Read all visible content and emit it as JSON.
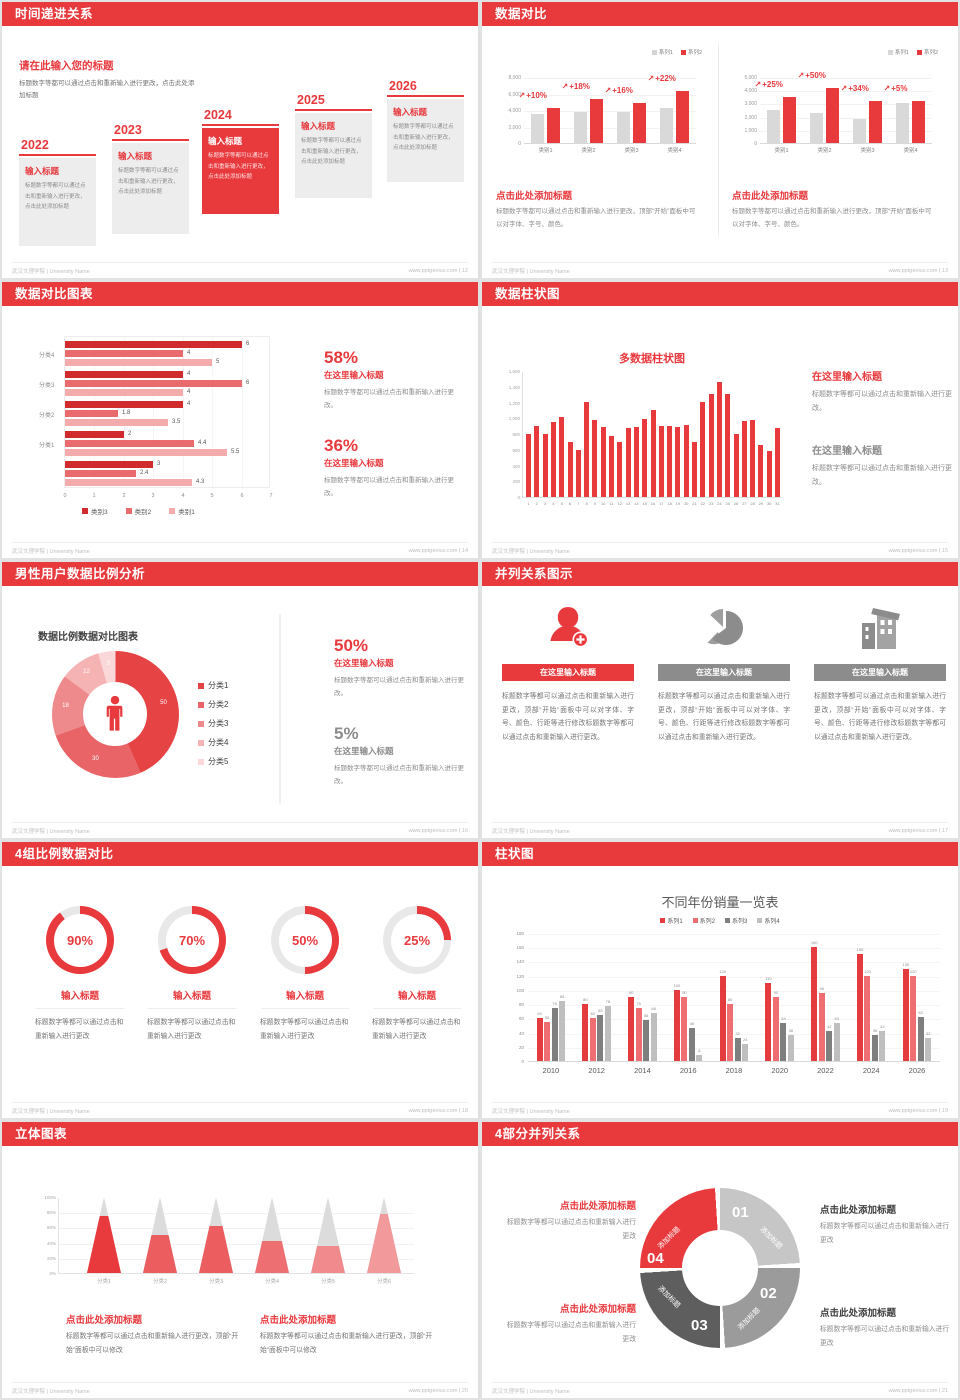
{
  "meta": {
    "accent": "#e8393d",
    "footer_left": "武汉文理学院 | University Name",
    "site": "www.pptgenius.com"
  },
  "slides": {
    "s12": {
      "title": "时间递进关系",
      "page": "12",
      "intro_title": "请在此输入您的标题",
      "intro_body": "标题数字等都可以通过点击和重新输入进行更改，点击此处添加标题",
      "items": [
        {
          "year": "2022",
          "label": "输入标题",
          "body": "标题数字等都可以通过点击和重新输入进行更改，点击此处添加标题",
          "highlight": false
        },
        {
          "year": "2023",
          "label": "输入标题",
          "body": "标题数字等都可以通过点击和重新输入进行更改，点击此处添加标题",
          "highlight": false
        },
        {
          "year": "2024",
          "label": "输入标题",
          "body": "标题数字等都可以通过点击和重新输入进行更改，点击此处添加标题",
          "highlight": true
        },
        {
          "year": "2025",
          "label": "输入标题",
          "body": "标题数字等都可以通过点击和重新输入进行更改，点击此处添加标题",
          "highlight": false
        },
        {
          "year": "2026",
          "label": "输入标题",
          "body": "标题数字等都可以通过点击和重新输入进行更改，点击此处添加标题",
          "highlight": false
        }
      ]
    },
    "s13": {
      "title": "数据对比",
      "page": "13",
      "charts": [
        {
          "type": "bar",
          "legend": [
            "系列1",
            "系列2"
          ],
          "yticks": [
            "8,000",
            "6,000",
            "4,000",
            "2,000",
            "0"
          ],
          "ymax": 8000,
          "categories": [
            "类别1",
            "类别2",
            "类别3",
            "类别4"
          ],
          "series1": [
            3500,
            3800,
            3700,
            4300
          ],
          "series2": [
            4200,
            5300,
            4800,
            6300
          ],
          "annotations": [
            "+10%",
            "+18%",
            "+16%",
            "+22%"
          ],
          "caption_title": "点击此处添加标题",
          "caption_body": "标题数字等都可以通过点击和重新输入进行更改，顶部“开始”面板中可以对字体、字号、颜色。"
        },
        {
          "type": "bar",
          "legend": [
            "系列1",
            "系列2"
          ],
          "yticks": [
            "5,000",
            "4,000",
            "3,000",
            "2,000",
            "1,000",
            "0"
          ],
          "ymax": 5000,
          "categories": [
            "类别1",
            "类别2",
            "类别3",
            "类别4"
          ],
          "series1": [
            2500,
            2300,
            1800,
            3000
          ],
          "series2": [
            3500,
            4200,
            3200,
            3200
          ],
          "annotations": [
            "+25%",
            "+50%",
            "+34%",
            "+5%"
          ],
          "caption_title": "点击此处添加标题",
          "caption_body": "标题数字等都可以通过点击和重新输入进行更改，顶部“开始”面板中可以对字体、字号、颜色。"
        }
      ]
    },
    "s14": {
      "title": "数据对比图表",
      "page": "14",
      "chart": {
        "type": "bar-horizontal",
        "colors": [
          "#d02c2e",
          "#ea6b6e",
          "#f3abac"
        ],
        "legend": [
          "类别3",
          "类别2",
          "类别1"
        ],
        "xticks": [
          "0",
          "1",
          "2",
          "3",
          "4",
          "5",
          "6",
          "7"
        ],
        "xmax": 7,
        "groups": [
          {
            "label": "分类4",
            "values": [
              6,
              4,
              5
            ]
          },
          {
            "label": "分类3",
            "values": [
              4,
              6,
              4
            ]
          },
          {
            "label": "分类2",
            "values": [
              4,
              1.8,
              3.5
            ]
          },
          {
            "label": "分类1",
            "values": [
              2,
              4.4,
              5.5
            ]
          },
          {
            "label": "",
            "values": [
              3,
              2.4,
              4.3
            ]
          }
        ]
      },
      "stats": [
        {
          "pct": "58%",
          "sub": "在这里输入标题",
          "body": "标题数字等都可以通过点击和重新输入进行更改。",
          "red": true
        },
        {
          "pct": "36%",
          "sub": "在这里输入标题",
          "body": "标题数字等都可以通过点击和重新输入进行更改。",
          "red": true
        }
      ]
    },
    "s15": {
      "title": "数据柱状图",
      "page": "15",
      "chart": {
        "type": "bar",
        "title": "多数据柱状图",
        "yticks": [
          "1,600",
          "1,400",
          "1,200",
          "1,000",
          "800",
          "600",
          "400",
          "200",
          "0"
        ],
        "ymax": 1600,
        "values": [
          800,
          900,
          800,
          950,
          1010,
          700,
          600,
          1200,
          980,
          890,
          780,
          700,
          880,
          890,
          990,
          1100,
          900,
          900,
          890,
          910,
          700,
          1200,
          1310,
          1460,
          1310,
          800,
          960,
          980,
          660,
          590,
          870
        ]
      },
      "stats": [
        {
          "head": "在这里输入标题",
          "body": "标题数字等都可以通过点击和重新输入进行更改。",
          "red": true
        },
        {
          "head": "在这里输入标题",
          "body": "标题数字等都可以通过点击和重新输入进行更改。",
          "red": false
        }
      ]
    },
    "s16": {
      "title": "男性用户数据比例分析",
      "page": "16",
      "chart": {
        "type": "pie",
        "title": "数据比例数据对比图表",
        "values": [
          50,
          30,
          18,
          12,
          5
        ],
        "labels": [
          "50",
          "30",
          "18",
          "12",
          "5"
        ],
        "colors": [
          "#e64345",
          "#e96467",
          "#ef8a8c",
          "#f5b3b4",
          "#fad7d8"
        ],
        "legend": [
          "分类1",
          "分类2",
          "分类3",
          "分类4",
          "分类5"
        ]
      },
      "stats": [
        {
          "pct": "50%",
          "sub": "在这里输入标题",
          "body": "标题数字等都可以通过点击和重新输入进行更改。",
          "red": true
        },
        {
          "pct": "5%",
          "sub": "在这里输入标题",
          "body": "标题数字等都可以通过点击和重新输入进行更改。",
          "red": false
        }
      ]
    },
    "s17": {
      "title": "并列关系图示",
      "page": "17",
      "columns": [
        {
          "icon": "nurse",
          "banner": "在这里输入标题",
          "red": true,
          "body": "标题数字等都可以通过点击和重新输入进行更改，顶部“开始”面板中可以对字体、字号、颜色、行距等进行修改标题数字等都可以通过点击和重新输入进行更改。"
        },
        {
          "icon": "pie",
          "banner": "在这里输入标题",
          "red": false,
          "body": "标题数字等都可以通过点击和重新输入进行更改，顶部“开始”面板中可以对字体、字号、颜色、行距等进行修改标题数字等都可以通过点击和重新输入进行更改。"
        },
        {
          "icon": "building",
          "banner": "在这里输入标题",
          "red": false,
          "body": "标题数字等都可以通过点击和重新输入进行更改，顶部“开始”面板中可以对字体、字号、颜色、行距等进行修改标题数字等都可以通过点击和重新输入进行更改。"
        }
      ]
    },
    "s18": {
      "title": "4组比例数据对比",
      "page": "18",
      "rings": [
        {
          "pct": 90,
          "label": "90%",
          "title": "输入标题",
          "body": "标题数字等都可以通过点击和重新输入进行更改"
        },
        {
          "pct": 70,
          "label": "70%",
          "title": "输入标题",
          "body": "标题数字等都可以通过点击和重新输入进行更改"
        },
        {
          "pct": 50,
          "label": "50%",
          "title": "输入标题",
          "body": "标题数字等都可以通过点击和重新输入进行更改"
        },
        {
          "pct": 25,
          "label": "25%",
          "title": "输入标题",
          "body": "标题数字等都可以通过点击和重新输入进行更改"
        }
      ]
    },
    "s19": {
      "title": "柱状图",
      "page": "19",
      "chart": {
        "type": "bar",
        "title": "不同年份销量一览表",
        "legend": [
          "系列1",
          "系列2",
          "系列3",
          "系列4"
        ],
        "colors": [
          "#e33b3e",
          "#ee6e71",
          "#7f7f7f",
          "#bfbfbf"
        ],
        "years": [
          "2010",
          "2012",
          "2014",
          "2016",
          "2018",
          "2020",
          "2022",
          "2024",
          "2026"
        ],
        "ymax": 180,
        "ystep": 20,
        "series": [
          {
            "name": "系列1",
            "values": [
              60,
              80,
              90,
              100,
              120,
              110,
              160,
              150,
              130
            ]
          },
          {
            "name": "系列2",
            "values": [
              55,
              60,
              75,
              90,
              80,
              90,
              96,
              120,
              120
            ]
          },
          {
            "name": "系列3",
            "values": [
              75,
              65,
              58,
              46,
              32,
              54,
              42,
              36,
              62
            ]
          },
          {
            "name": "系列4",
            "values": [
              85,
              78,
              68,
              8,
              24,
              36,
              53,
              42,
              32
            ]
          }
        ]
      }
    },
    "s20": {
      "title": "立体图表",
      "page": "20",
      "chart": {
        "type": "cone",
        "categories": [
          "分类1",
          "分类2",
          "分类3",
          "分类4",
          "分类5",
          "分类6"
        ],
        "fills": [
          75,
          50,
          62,
          42,
          35,
          78
        ],
        "colors": [
          "#e8393d",
          "#ec5d60",
          "#ec5d60",
          "#ee6f72",
          "#f18a8c",
          "#f2999b"
        ],
        "yticks": [
          "100%",
          "80%",
          "60%",
          "40%",
          "20%",
          "0%"
        ]
      },
      "captions": [
        {
          "head": "点击此处添加标题",
          "body": "标题数字等都可以通过点击和重新输入进行更改，顶部“开始”面板中可以修改"
        },
        {
          "head": "点击此处添加标题",
          "body": "标题数字等都可以通过点击和重新输入进行更改，顶部“开始”面板中可以修改"
        }
      ]
    },
    "s21": {
      "title": "4部分并列关系",
      "page": "21",
      "segments": [
        {
          "num": "01",
          "label": "添加标题",
          "color": "#c6c6c6"
        },
        {
          "num": "02",
          "label": "添加标题",
          "color": "#9b9b9b"
        },
        {
          "num": "03",
          "label": "添加标题",
          "color": "#5e5e5e"
        },
        {
          "num": "04",
          "label": "添加标题",
          "color": "#e8393d"
        }
      ],
      "callouts": [
        {
          "head": "点击此处添加标题",
          "body": "标题数字等都可以通过点击和重新输入进行更改",
          "red": true
        },
        {
          "head": "点击此处添加标题",
          "body": "标题数字等都可以通过点击和重新输入进行更改",
          "red": false
        },
        {
          "head": "点击此处添加标题",
          "body": "标题数字等都可以通过点击和重新输入进行更改",
          "red": true
        },
        {
          "head": "点击此处添加标题",
          "body": "标题数字等都可以通过点击和重新输入进行更改",
          "red": false
        }
      ]
    }
  }
}
